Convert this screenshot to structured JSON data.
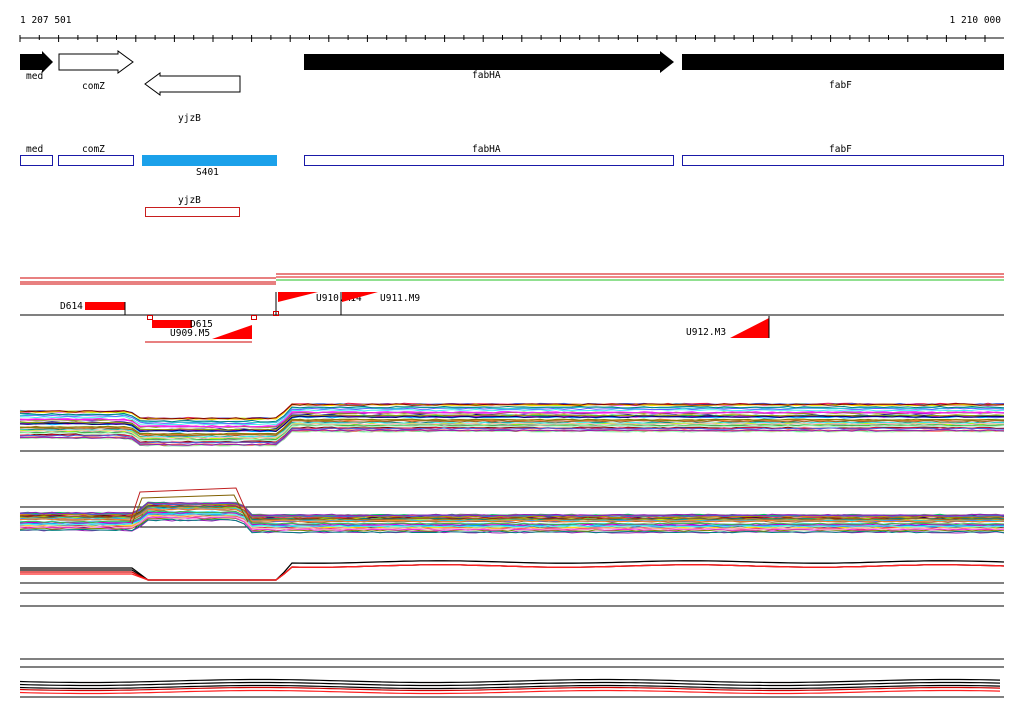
{
  "coordinates": {
    "start": "1 207 501",
    "end": "1 210 000"
  },
  "genes": [
    {
      "id": "med",
      "label": "med",
      "strand": "+",
      "style": "filled"
    },
    {
      "id": "comZ",
      "label": "comZ",
      "strand": "+",
      "style": "outline"
    },
    {
      "id": "yjzB",
      "label": "yjzB",
      "strand": "-",
      "style": "outline"
    },
    {
      "id": "fabHA",
      "label": "fabHA",
      "strand": "+",
      "style": "filled"
    },
    {
      "id": "fabF",
      "label": "fabF",
      "strand": "+",
      "style": "filled"
    }
  ],
  "transcript_boxes": [
    {
      "id": "med",
      "label": "med"
    },
    {
      "id": "comZ",
      "label": "comZ"
    },
    {
      "id": "S401",
      "label": "S401"
    },
    {
      "id": "fabHA",
      "label": "fabHA"
    },
    {
      "id": "fabF",
      "label": "fabF"
    }
  ],
  "antisense_boxes": [
    {
      "id": "yjzB",
      "label": "yjzB"
    }
  ],
  "segments": [
    {
      "id": "D614",
      "label": "D614"
    },
    {
      "id": "D615",
      "label": "D615"
    },
    {
      "id": "U909",
      "label": "U909.M5"
    },
    {
      "id": "U910",
      "label": "U910.M14"
    },
    {
      "id": "U911",
      "label": "U911.M9"
    },
    {
      "id": "U912",
      "label": "U912.M3"
    }
  ],
  "colors": {
    "gene_fill": "#000000",
    "transcript_outline": "#1a1aa8",
    "highlight_fill": "#1ba1ea",
    "antisense_outline": "#c81e1e",
    "segment_red": "#ff0000"
  }
}
